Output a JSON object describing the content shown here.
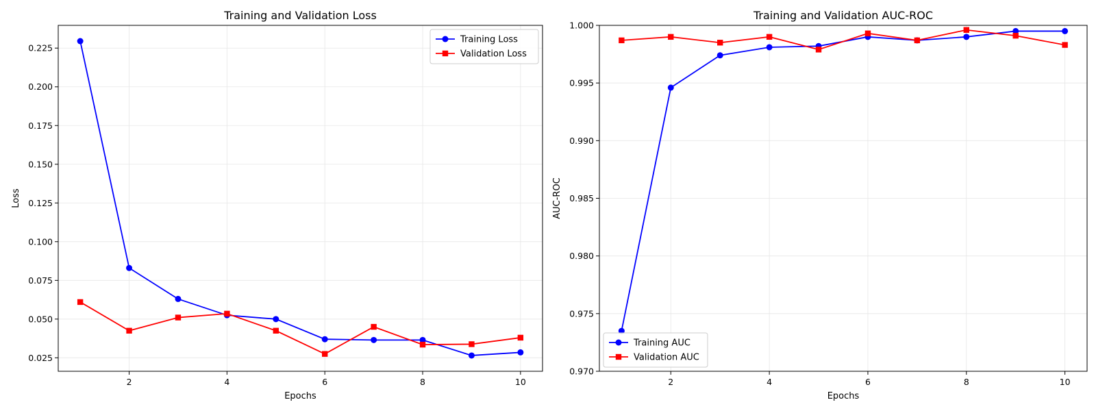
{
  "chart_data": [
    {
      "type": "line",
      "title": "Training and Validation Loss",
      "xlabel": "Epochs",
      "ylabel": "Loss",
      "xlim": [
        0.55,
        10.45
      ],
      "ylim": [
        0.0163,
        0.2397
      ],
      "xticks": [
        2,
        4,
        6,
        8,
        10
      ],
      "yticks": [
        0.025,
        0.05,
        0.075,
        0.1,
        0.125,
        0.15,
        0.175,
        0.2,
        0.225
      ],
      "ytick_labels": [
        "0.025",
        "0.050",
        "0.075",
        "0.100",
        "0.125",
        "0.150",
        "0.175",
        "0.200",
        "0.225"
      ],
      "grid": true,
      "legend_position": "upper right",
      "x": [
        1,
        2,
        3,
        4,
        5,
        6,
        7,
        8,
        9,
        10
      ],
      "series": [
        {
          "name": "Training Loss",
          "color": "#0000ff",
          "marker": "circle",
          "values": [
            0.2295,
            0.083,
            0.063,
            0.0525,
            0.05,
            0.037,
            0.0365,
            0.0365,
            0.0265,
            0.0285
          ]
        },
        {
          "name": "Validation Loss",
          "color": "#ff0000",
          "marker": "square",
          "values": [
            0.061,
            0.0425,
            0.051,
            0.0535,
            0.0425,
            0.0275,
            0.045,
            0.0335,
            0.0338,
            0.038
          ]
        }
      ]
    },
    {
      "type": "line",
      "title": "Training and Validation AUC-ROC",
      "xlabel": "Epochs",
      "ylabel": "AUC-ROC",
      "xlim": [
        0.55,
        10.45
      ],
      "ylim": [
        0.97,
        1.0
      ],
      "xticks": [
        2,
        4,
        6,
        8,
        10
      ],
      "yticks": [
        0.97,
        0.975,
        0.98,
        0.985,
        0.99,
        0.995,
        1.0
      ],
      "ytick_labels": [
        "0.970",
        "0.975",
        "0.980",
        "0.985",
        "0.990",
        "0.995",
        "1.000"
      ],
      "grid": true,
      "legend_position": "lower left",
      "x": [
        1,
        2,
        3,
        4,
        5,
        6,
        7,
        8,
        9,
        10
      ],
      "series": [
        {
          "name": "Training AUC",
          "color": "#0000ff",
          "marker": "circle",
          "values": [
            0.9735,
            0.9946,
            0.9974,
            0.9981,
            0.9982,
            0.999,
            0.9987,
            0.999,
            0.9995,
            0.9995
          ]
        },
        {
          "name": "Validation AUC",
          "color": "#ff0000",
          "marker": "square",
          "values": [
            0.9987,
            0.999,
            0.9985,
            0.999,
            0.9979,
            0.9993,
            0.9987,
            0.9996,
            0.9991,
            0.9983
          ]
        }
      ]
    }
  ]
}
